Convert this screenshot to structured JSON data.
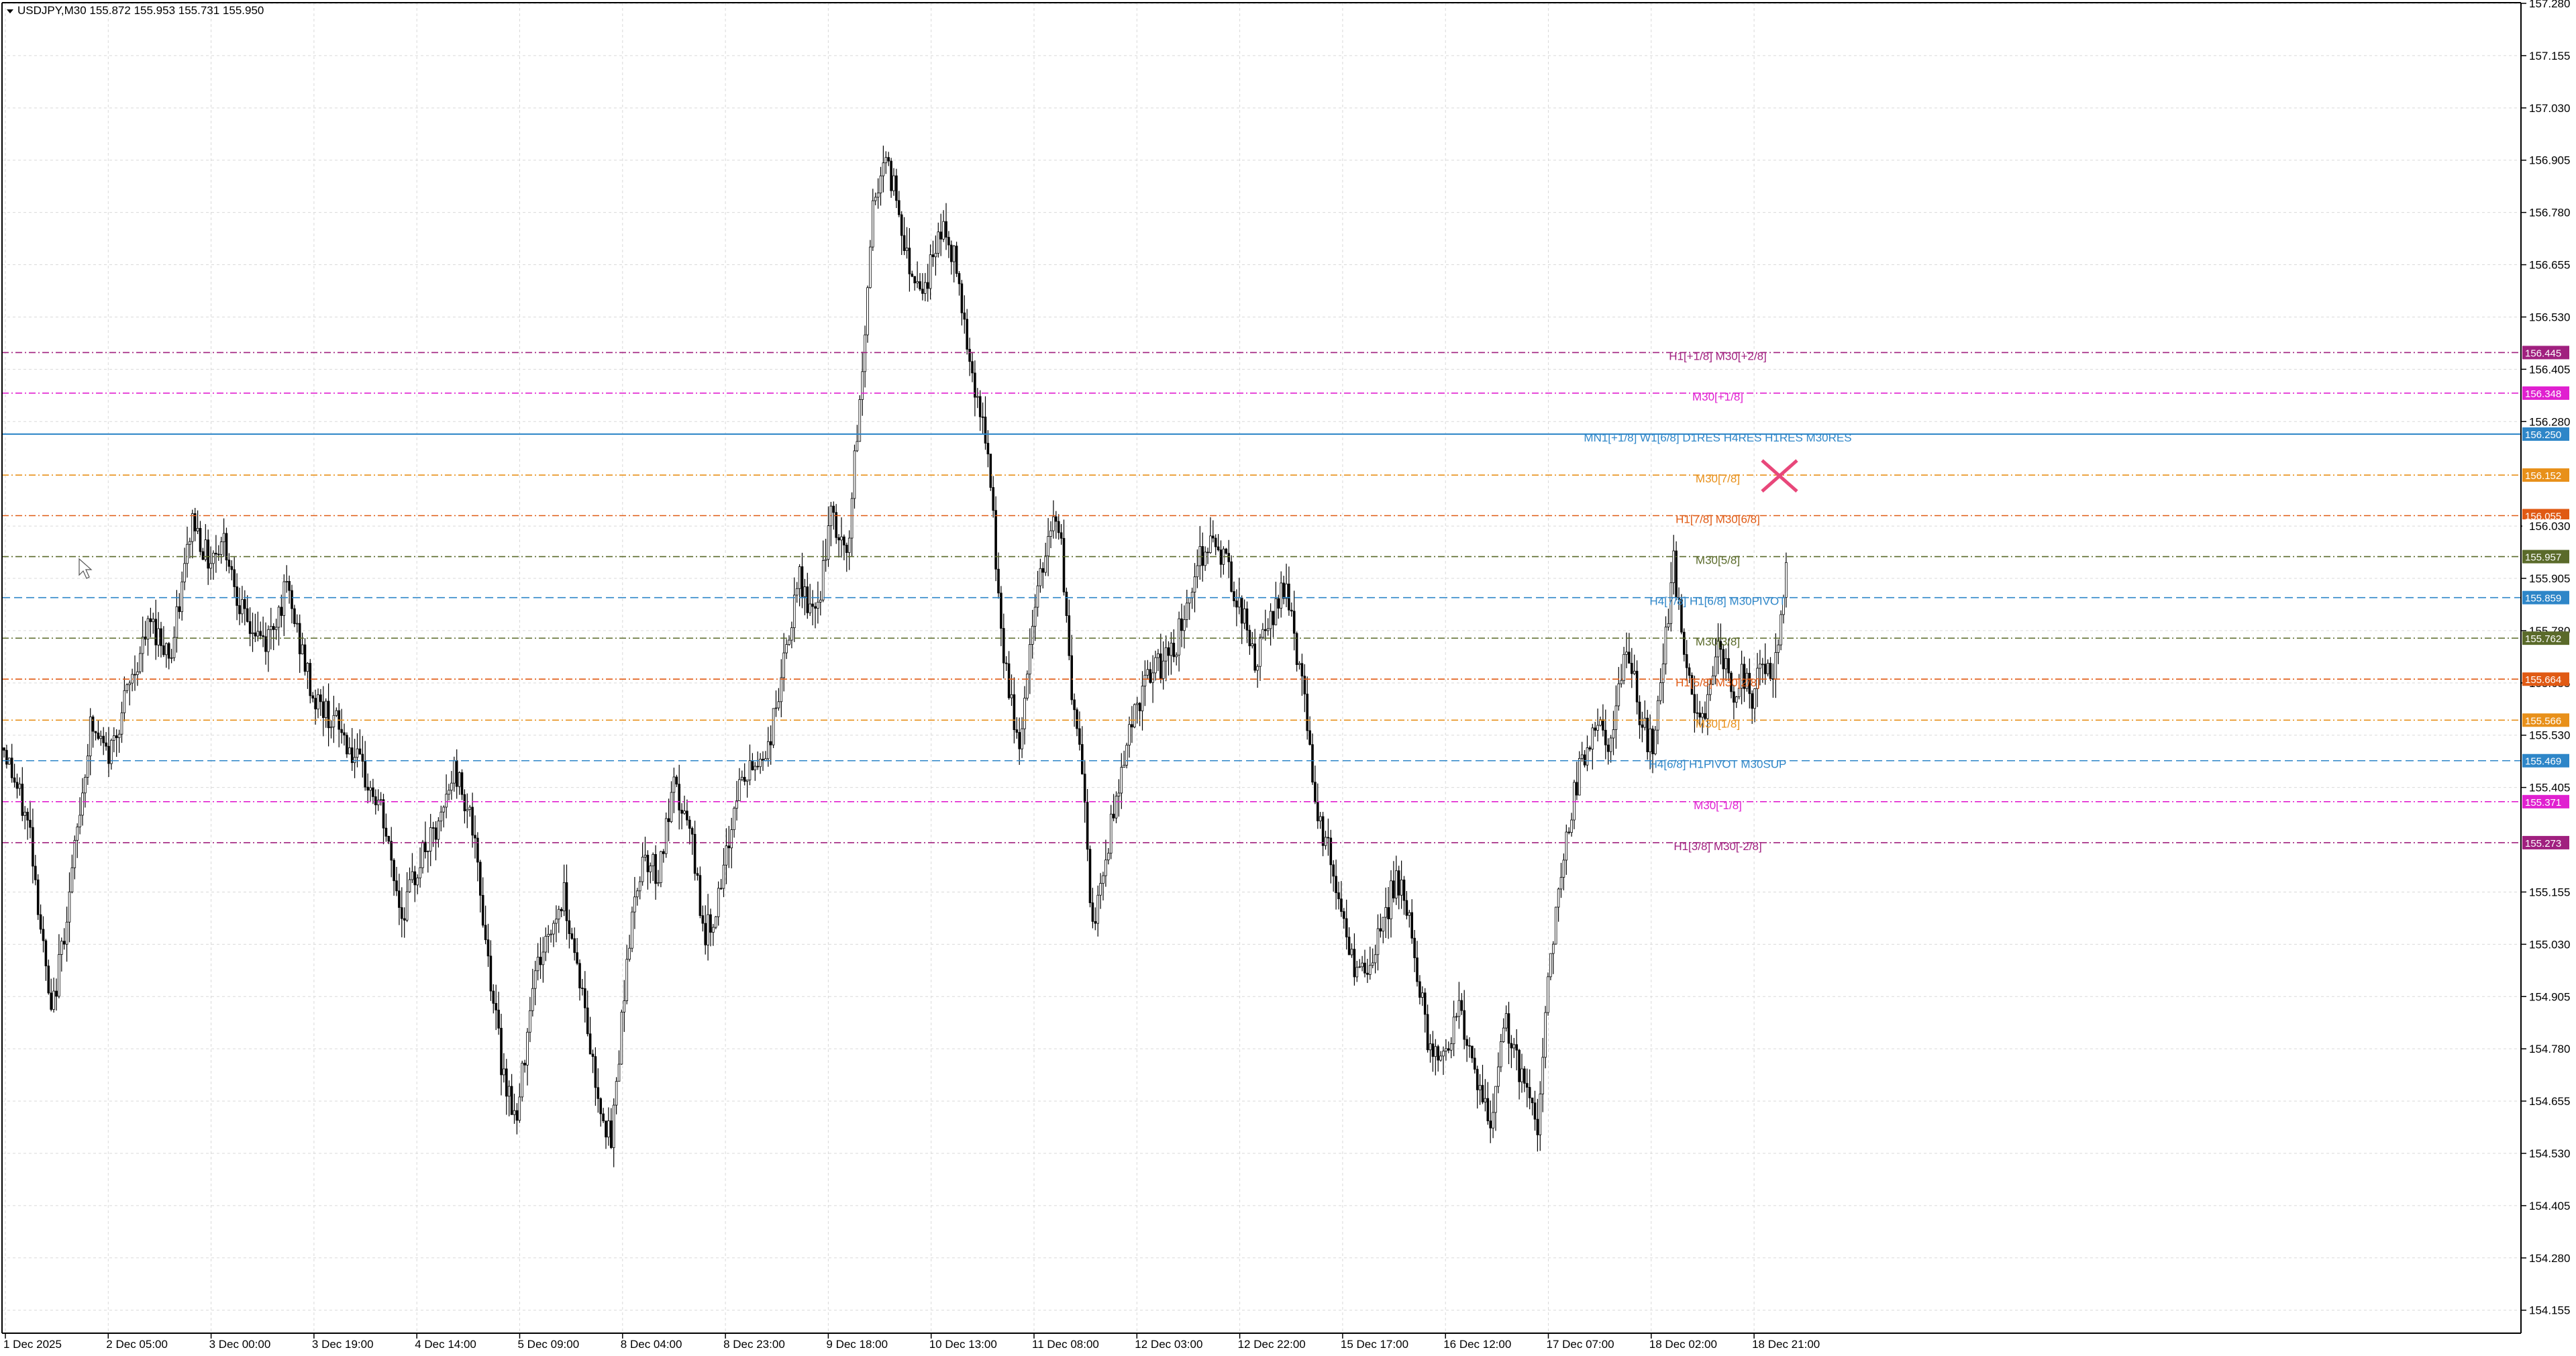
{
  "window": {
    "symbol_info": "USDJPY,M30  155.872 155.953 155.731 155.950",
    "dropdown_icon": "triangle-down-icon"
  },
  "colors": {
    "background": "#ffffff",
    "grid": "#d9d9d9",
    "candle": "#000000",
    "axis": "#000000",
    "marker": "#e8477a"
  },
  "chart_data": {
    "type": "candlestick",
    "symbol": "USDJPY",
    "timeframe": "M30",
    "ohlc_header": {
      "open": 155.872,
      "high": 155.953,
      "low": 155.731,
      "close": 155.95
    },
    "ylim": [
      154.08,
      157.29
    ],
    "y_ticks": [
      "157.280",
      "157.155",
      "157.030",
      "156.905",
      "156.780",
      "156.655",
      "156.530",
      "156.405",
      "156.280",
      "156.030",
      "155.905",
      "155.780",
      "155.655",
      "155.530",
      "155.405",
      "155.155",
      "155.030",
      "154.905",
      "154.780",
      "154.655",
      "154.530",
      "154.405",
      "154.280",
      "154.155"
    ],
    "x_ticks": [
      "1 Dec 2025",
      "2 Dec 05:00",
      "3 Dec 00:00",
      "3 Dec 19:00",
      "4 Dec 14:00",
      "5 Dec 09:00",
      "8 Dec 04:00",
      "8 Dec 23:00",
      "9 Dec 18:00",
      "10 Dec 13:00",
      "11 Dec 08:00",
      "12 Dec 03:00",
      "12 Dec 22:00",
      "15 Dec 17:00",
      "16 Dec 12:00",
      "17 Dec 07:00",
      "18 Dec 02:00",
      "18 Dec 21:00"
    ],
    "price_path": [
      [
        0,
        155.5
      ],
      [
        10,
        155.3
      ],
      [
        18,
        154.85
      ],
      [
        25,
        155.15
      ],
      [
        33,
        155.55
      ],
      [
        40,
        155.48
      ],
      [
        48,
        155.65
      ],
      [
        56,
        155.8
      ],
      [
        64,
        155.72
      ],
      [
        72,
        156.05
      ],
      [
        78,
        155.95
      ],
      [
        84,
        156.0
      ],
      [
        92,
        155.8
      ],
      [
        100,
        155.75
      ],
      [
        108,
        155.88
      ],
      [
        118,
        155.62
      ],
      [
        128,
        155.55
      ],
      [
        136,
        155.45
      ],
      [
        144,
        155.35
      ],
      [
        152,
        155.1
      ],
      [
        160,
        155.25
      ],
      [
        166,
        155.3
      ],
      [
        172,
        155.45
      ],
      [
        178,
        155.35
      ],
      [
        184,
        155.05
      ],
      [
        190,
        154.75
      ],
      [
        196,
        154.6
      ],
      [
        202,
        154.95
      ],
      [
        208,
        155.05
      ],
      [
        214,
        155.15
      ],
      [
        220,
        154.95
      ],
      [
        226,
        154.7
      ],
      [
        232,
        154.55
      ],
      [
        238,
        155.0
      ],
      [
        244,
        155.25
      ],
      [
        250,
        155.2
      ],
      [
        256,
        155.4
      ],
      [
        262,
        155.3
      ],
      [
        268,
        155.05
      ],
      [
        274,
        155.15
      ],
      [
        280,
        155.4
      ],
      [
        286,
        155.45
      ],
      [
        292,
        155.5
      ],
      [
        298,
        155.7
      ],
      [
        304,
        155.9
      ],
      [
        310,
        155.8
      ],
      [
        316,
        156.05
      ],
      [
        322,
        155.95
      ],
      [
        328,
        156.4
      ],
      [
        332,
        156.8
      ],
      [
        336,
        156.9
      ],
      [
        340,
        156.85
      ],
      [
        346,
        156.65
      ],
      [
        352,
        156.6
      ],
      [
        358,
        156.75
      ],
      [
        364,
        156.65
      ],
      [
        370,
        156.4
      ],
      [
        376,
        156.2
      ],
      [
        382,
        155.7
      ],
      [
        388,
        155.5
      ],
      [
        394,
        155.85
      ],
      [
        400,
        156.05
      ],
      [
        404,
        156.0
      ],
      [
        408,
        155.6
      ],
      [
        412,
        155.45
      ],
      [
        416,
        155.05
      ],
      [
        420,
        155.2
      ],
      [
        424,
        155.35
      ],
      [
        430,
        155.55
      ],
      [
        436,
        155.65
      ],
      [
        442,
        155.7
      ],
      [
        448,
        155.75
      ],
      [
        454,
        155.9
      ],
      [
        460,
        156.0
      ],
      [
        466,
        155.95
      ],
      [
        472,
        155.85
      ],
      [
        478,
        155.7
      ],
      [
        484,
        155.8
      ],
      [
        490,
        155.9
      ],
      [
        496,
        155.65
      ],
      [
        502,
        155.35
      ],
      [
        508,
        155.2
      ],
      [
        514,
        155.0
      ],
      [
        520,
        154.95
      ],
      [
        526,
        155.05
      ],
      [
        532,
        155.2
      ],
      [
        538,
        155.05
      ],
      [
        544,
        154.8
      ],
      [
        550,
        154.75
      ],
      [
        556,
        154.9
      ],
      [
        562,
        154.7
      ],
      [
        568,
        154.6
      ],
      [
        574,
        154.85
      ],
      [
        580,
        154.7
      ],
      [
        586,
        154.6
      ],
      [
        590,
        154.95
      ],
      [
        596,
        155.25
      ],
      [
        602,
        155.45
      ],
      [
        608,
        155.55
      ],
      [
        614,
        155.5
      ],
      [
        620,
        155.75
      ],
      [
        626,
        155.55
      ],
      [
        630,
        155.5
      ],
      [
        634,
        155.7
      ],
      [
        638,
        155.95
      ],
      [
        642,
        155.7
      ],
      [
        646,
        155.6
      ],
      [
        650,
        155.55
      ],
      [
        654,
        155.75
      ],
      [
        658,
        155.7
      ],
      [
        661,
        155.6
      ],
      [
        664,
        155.68
      ],
      [
        668,
        155.62
      ],
      [
        672,
        155.72
      ],
      [
        676,
        155.65
      ],
      [
        679,
        155.8
      ],
      [
        681,
        155.95
      ]
    ],
    "levels": [
      {
        "label": "H1[+1/8] M30[+2/8]",
        "price": 156.445,
        "tag": "156.445",
        "color": "#a0207f",
        "style": "dashdot"
      },
      {
        "label": "M30[+1/8]",
        "price": 156.348,
        "tag": "156.348",
        "color": "#e020d0",
        "style": "dashdot"
      },
      {
        "label": "MN1[+1/8] W1[6/8] D1RES H4RES H1RES M30RES",
        "price": 156.25,
        "tag": "156.250",
        "color": "#2e86c8",
        "style": "solid"
      },
      {
        "label": "M30[7/8]",
        "price": 156.152,
        "tag": "156.152",
        "color": "#e8901a",
        "style": "dashdot"
      },
      {
        "label": "H1[7/8] M30[6/8]",
        "price": 156.055,
        "tag": "156.055",
        "color": "#e05a14",
        "style": "dashdot"
      },
      {
        "label": "M30[5/8]",
        "price": 155.957,
        "tag": "155.957",
        "color": "#5a6a2a",
        "style": "dashdot"
      },
      {
        "label": "H4[7/8] H1[6/8] M30PIVOT",
        "price": 155.859,
        "tag": "155.859",
        "color": "#2e86c8",
        "style": "dash"
      },
      {
        "label": "M30[3/8]",
        "price": 155.762,
        "tag": "155.762",
        "color": "#5a6a2a",
        "style": "dashdot"
      },
      {
        "label": "H1[5/8] M30[2/8]",
        "price": 155.664,
        "tag": "155.664",
        "color": "#e05a14",
        "style": "dashdot"
      },
      {
        "label": "M30[1/8]",
        "price": 155.566,
        "tag": "155.566",
        "color": "#e8901a",
        "style": "dashdot"
      },
      {
        "label": "H4[6/8] H1PIVOT M30SUP",
        "price": 155.469,
        "tag": "155.469",
        "color": "#2e86c8",
        "style": "dash"
      },
      {
        "label": "M30[-1/8]",
        "price": 155.371,
        "tag": "155.371",
        "color": "#e020d0",
        "style": "dashdot"
      },
      {
        "label": "H1[3/8] M30[-2/8]",
        "price": 155.273,
        "tag": "155.273",
        "color": "#a0207f",
        "style": "dashdot"
      }
    ],
    "current_price_tag": {
      "price": 156.03,
      "text": "156.030"
    },
    "marker": {
      "type": "x-cross",
      "price": 156.15
    },
    "grid": true,
    "legend": "none"
  }
}
